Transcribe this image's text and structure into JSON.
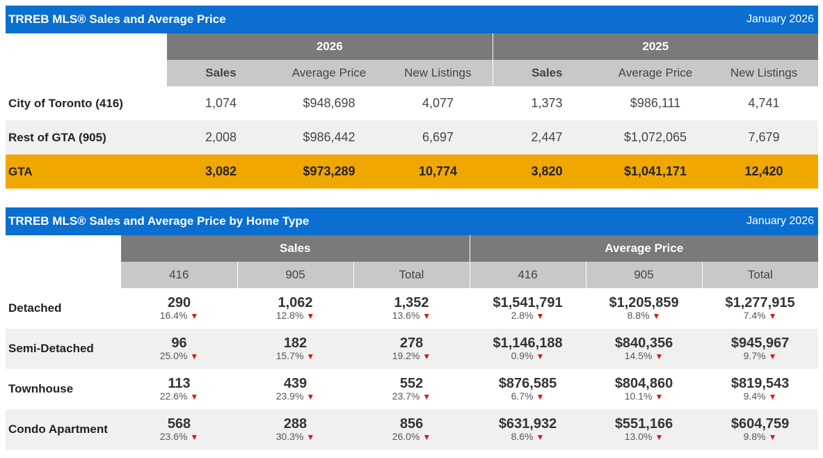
{
  "table1": {
    "title": "TRREB MLS® Sales and Average Price",
    "date": "January 2026",
    "years": [
      "2026",
      "2025"
    ],
    "columns": [
      "Sales",
      "Average Price",
      "New Listings",
      "Sales",
      "Average Price",
      "New Listings"
    ],
    "rows": [
      {
        "label": "City of Toronto (416)",
        "values": [
          "1,074",
          "$948,698",
          "4,077",
          "1,373",
          "$986,111",
          "4,741"
        ]
      },
      {
        "label": "Rest of GTA (905)",
        "values": [
          "2,008",
          "$986,442",
          "6,697",
          "2,447",
          "$1,072,065",
          "7,679"
        ]
      },
      {
        "label": "GTA",
        "values": [
          "3,082",
          "$973,289",
          "10,774",
          "3,820",
          "$1,041,171",
          "12,420"
        ]
      }
    ]
  },
  "table2": {
    "title": "TRREB MLS® Sales and Average Price by Home Type",
    "date": "January 2026",
    "groups": [
      "Sales",
      "Average Price"
    ],
    "columns": [
      "416",
      "905",
      "Total",
      "416",
      "905",
      "Total"
    ],
    "rows": [
      {
        "label": "Detached",
        "cells": [
          {
            "v": "290",
            "p": "16.4%"
          },
          {
            "v": "1,062",
            "p": "12.8%"
          },
          {
            "v": "1,352",
            "p": "13.6%"
          },
          {
            "v": "$1,541,791",
            "p": "2.8%"
          },
          {
            "v": "$1,205,859",
            "p": "8.8%"
          },
          {
            "v": "$1,277,915",
            "p": "7.4%"
          }
        ]
      },
      {
        "label": "Semi-Detached",
        "cells": [
          {
            "v": "96",
            "p": "25.0%"
          },
          {
            "v": "182",
            "p": "15.7%"
          },
          {
            "v": "278",
            "p": "19.2%"
          },
          {
            "v": "$1,146,188",
            "p": "0.9%"
          },
          {
            "v": "$840,356",
            "p": "14.5%"
          },
          {
            "v": "$945,967",
            "p": "9.7%"
          }
        ]
      },
      {
        "label": "Townhouse",
        "cells": [
          {
            "v": "113",
            "p": "22.6%"
          },
          {
            "v": "439",
            "p": "23.9%"
          },
          {
            "v": "552",
            "p": "23.7%"
          },
          {
            "v": "$876,585",
            "p": "6.7%"
          },
          {
            "v": "$804,860",
            "p": "10.1%"
          },
          {
            "v": "$819,543",
            "p": "9.4%"
          }
        ]
      },
      {
        "label": "Condo Apartment",
        "cells": [
          {
            "v": "568",
            "p": "23.6%"
          },
          {
            "v": "288",
            "p": "30.3%"
          },
          {
            "v": "856",
            "p": "26.0%"
          },
          {
            "v": "$631,932",
            "p": "8.6%"
          },
          {
            "v": "$551,166",
            "p": "13.0%"
          },
          {
            "v": "$604,759",
            "p": "9.8%"
          }
        ]
      }
    ],
    "arrow_glyph": "▼"
  },
  "colors": {
    "title_bar": "#0a6fd0",
    "header_dark": "#7a7a7a",
    "header_light": "#c8c8c8",
    "highlight": "#f0a800",
    "arrow": "#cc1a1a"
  }
}
